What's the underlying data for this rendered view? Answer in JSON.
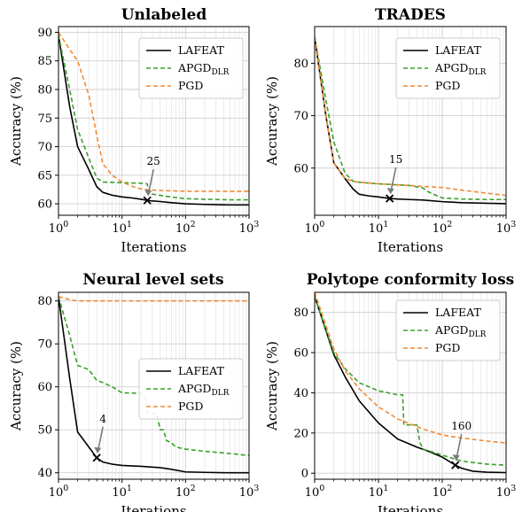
{
  "chart_data": [
    {
      "type": "line",
      "title": "Unlabeled",
      "xlabel": "Iterations",
      "ylabel": "Accuracy (%)",
      "xscale": "log",
      "xlim": [
        1,
        1000
      ],
      "ylim": [
        58,
        91
      ],
      "xticks": [
        1,
        10,
        100,
        1000
      ],
      "xtick_labels": [
        "10",
        "10",
        "10",
        "10"
      ],
      "xtick_exponents": [
        "0",
        "1",
        "2",
        "3"
      ],
      "yticks": [
        60,
        65,
        70,
        75,
        80,
        85,
        90
      ],
      "ytick_labels": [
        "60",
        "65",
        "70",
        "75",
        "80",
        "85",
        "90"
      ],
      "grid": true,
      "legend_position": "top-right",
      "legend": {
        "main": [
          "LAFEAT",
          "APGD",
          "PGD"
        ],
        "sub": [
          "",
          "DLR",
          ""
        ]
      },
      "series": [
        {
          "name": "LAFEAT",
          "color": "#000000",
          "dashed": false,
          "x": [
            1,
            1.5,
            2,
            3,
            4,
            5,
            7,
            10,
            15,
            20,
            25,
            30,
            40,
            60,
            100,
            200,
            500,
            1000
          ],
          "y": [
            89.5,
            77,
            70,
            66,
            63,
            62,
            61.5,
            61.2,
            61,
            60.8,
            60.6,
            60.5,
            60.4,
            60.2,
            60,
            59.9,
            59.8,
            59.8
          ]
        },
        {
          "name": "APGD",
          "color": "#3aa02a",
          "dashed": true,
          "x": [
            1,
            1.5,
            2,
            3,
            4,
            5,
            10,
            20,
            25,
            26,
            30,
            50,
            70,
            100,
            200,
            500,
            1000
          ],
          "y": [
            89.5,
            80,
            73,
            68,
            64.5,
            63.8,
            63.7,
            63.6,
            63.5,
            62,
            61.7,
            61.3,
            61.1,
            60.9,
            60.8,
            60.7,
            60.7
          ]
        },
        {
          "name": "PGD",
          "color": "#f28a35",
          "dashed": true,
          "x": [
            1,
            1.5,
            2,
            3,
            4,
            5,
            7,
            10,
            15,
            20,
            30,
            50,
            100,
            200,
            500,
            1000
          ],
          "y": [
            90,
            87,
            85,
            79,
            72,
            67,
            65,
            63.8,
            63,
            62.6,
            62.4,
            62.3,
            62.2,
            62.2,
            62.2,
            62.2
          ]
        }
      ],
      "annotation": {
        "label": "25",
        "x": 25,
        "y": 60.6
      }
    },
    {
      "type": "line",
      "title": "TRADES",
      "xlabel": "Iterations",
      "ylabel": "Accuracy (%)",
      "xscale": "log",
      "xlim": [
        1,
        1000
      ],
      "ylim": [
        51,
        87
      ],
      "xticks": [
        1,
        10,
        100,
        1000
      ],
      "xtick_labels": [
        "10",
        "10",
        "10",
        "10"
      ],
      "xtick_exponents": [
        "0",
        "1",
        "2",
        "3"
      ],
      "yticks": [
        60,
        70,
        80
      ],
      "ytick_labels": [
        "60",
        "70",
        "80"
      ],
      "grid": true,
      "legend_position": "top-right",
      "legend": {
        "main": [
          "LAFEAT",
          "APGD",
          "PGD"
        ],
        "sub": [
          "",
          "DLR",
          ""
        ]
      },
      "series": [
        {
          "name": "LAFEAT",
          "color": "#000000",
          "dashed": false,
          "x": [
            1,
            1.5,
            2,
            3,
            4,
            5,
            7,
            10,
            15,
            20,
            30,
            50,
            100,
            200,
            500,
            1000
          ],
          "y": [
            85,
            70,
            61,
            58,
            56,
            55,
            54.7,
            54.5,
            54.2,
            54.1,
            54,
            53.9,
            53.6,
            53.4,
            53.3,
            53.2
          ]
        },
        {
          "name": "APGD",
          "color": "#3aa02a",
          "dashed": true,
          "x": [
            1,
            1.5,
            2,
            3,
            4,
            5,
            10,
            20,
            30,
            50,
            60,
            80,
            100,
            200,
            500,
            1000
          ],
          "y": [
            85,
            73,
            65,
            59,
            57.5,
            57.3,
            57,
            56.8,
            56.7,
            56.2,
            55.5,
            54.8,
            54.3,
            54.1,
            54,
            54
          ]
        },
        {
          "name": "PGD",
          "color": "#f28a35",
          "dashed": true,
          "x": [
            1,
            1.5,
            2,
            3,
            4,
            5,
            10,
            20,
            50,
            100,
            200,
            500,
            1000
          ],
          "y": [
            85,
            70,
            61,
            58,
            57.5,
            57.3,
            57,
            56.8,
            56.5,
            56.3,
            55.8,
            55.2,
            54.8
          ]
        }
      ],
      "annotation": {
        "label": "15",
        "x": 15,
        "y": 54.2
      }
    },
    {
      "type": "line",
      "title": "Neural level sets",
      "xlabel": "Iterations",
      "ylabel": "Accuracy (%)",
      "xscale": "log",
      "xlim": [
        1,
        1000
      ],
      "ylim": [
        38.5,
        82
      ],
      "xticks": [
        1,
        10,
        100,
        1000
      ],
      "xtick_labels": [
        "10",
        "10",
        "10",
        "10"
      ],
      "xtick_exponents": [
        "0",
        "1",
        "2",
        "3"
      ],
      "yticks": [
        40,
        50,
        60,
        70,
        80
      ],
      "ytick_labels": [
        "40",
        "50",
        "60",
        "70",
        "80"
      ],
      "grid": true,
      "legend_position": "center-right",
      "legend": {
        "main": [
          "LAFEAT",
          "APGD",
          "PGD"
        ],
        "sub": [
          "",
          "DLR",
          ""
        ]
      },
      "series": [
        {
          "name": "LAFEAT",
          "color": "#000000",
          "dashed": false,
          "x": [
            1,
            1.5,
            2,
            3,
            4,
            5,
            7,
            10,
            20,
            40,
            60,
            100,
            200,
            500,
            1000
          ],
          "y": [
            81,
            62,
            49.5,
            46,
            43.5,
            42.5,
            42,
            41.7,
            41.5,
            41.2,
            40.8,
            40.2,
            40.1,
            40,
            40
          ]
        },
        {
          "name": "APGD",
          "color": "#3aa02a",
          "dashed": true,
          "x": [
            1,
            1.5,
            2,
            3,
            4,
            5,
            7,
            10,
            20,
            24,
            25,
            35,
            40,
            45,
            50,
            60,
            70,
            100,
            200,
            500,
            1000
          ],
          "y": [
            81,
            72,
            65,
            64,
            61.5,
            61,
            60,
            58.6,
            58.5,
            57,
            53.8,
            53.8,
            50,
            50,
            47.5,
            47,
            46,
            45.5,
            45,
            44.5,
            44
          ]
        },
        {
          "name": "PGD",
          "color": "#f28a35",
          "dashed": true,
          "x": [
            1,
            1.5,
            2,
            3,
            5,
            10,
            100,
            1000
          ],
          "y": [
            81,
            80.3,
            80,
            80,
            80,
            80,
            80,
            80
          ]
        }
      ],
      "annotation": {
        "label": "4",
        "x": 4,
        "y": 43.5
      }
    },
    {
      "type": "line",
      "title": "Polytope conformity loss",
      "xlabel": "Iterations",
      "ylabel": "Accuracy (%)",
      "xscale": "log",
      "xlim": [
        1,
        1000
      ],
      "ylim": [
        -3,
        90
      ],
      "xticks": [
        1,
        10,
        100,
        1000
      ],
      "xtick_labels": [
        "10",
        "10",
        "10",
        "10"
      ],
      "xtick_exponents": [
        "0",
        "1",
        "2",
        "3"
      ],
      "yticks": [
        0,
        20,
        40,
        60,
        80
      ],
      "ytick_labels": [
        "0",
        "20",
        "40",
        "60",
        "80"
      ],
      "grid": true,
      "legend_position": "top-right",
      "legend": {
        "main": [
          "LAFEAT",
          "APGD",
          "PGD"
        ],
        "sub": [
          "",
          "DLR",
          ""
        ]
      },
      "series": [
        {
          "name": "LAFEAT",
          "color": "#000000",
          "dashed": false,
          "x": [
            1,
            2,
            3,
            5,
            10,
            20,
            40,
            60,
            100,
            160,
            200,
            300,
            500,
            1000
          ],
          "y": [
            88,
            59,
            48,
            36,
            25,
            17,
            13,
            11,
            8,
            4,
            2.5,
            1,
            0.5,
            0.3
          ]
        },
        {
          "name": "APGD",
          "color": "#3aa02a",
          "dashed": true,
          "x": [
            1,
            2,
            3,
            5,
            10,
            20,
            24,
            25,
            40,
            45,
            50,
            100,
            160,
            200,
            500,
            1000
          ],
          "y": [
            88,
            60,
            52,
            45,
            41,
            39,
            39,
            24,
            24,
            15,
            12,
            9,
            7,
            6,
            4.5,
            4
          ]
        },
        {
          "name": "PGD",
          "color": "#f28a35",
          "dashed": true,
          "x": [
            1,
            2,
            3,
            5,
            10,
            20,
            50,
            100,
            200,
            500,
            1000
          ],
          "y": [
            90,
            62,
            51,
            42,
            33,
            27,
            22,
            19,
            17.5,
            16,
            15
          ]
        }
      ],
      "annotation": {
        "label": "160",
        "x": 160,
        "y": 4
      }
    }
  ]
}
